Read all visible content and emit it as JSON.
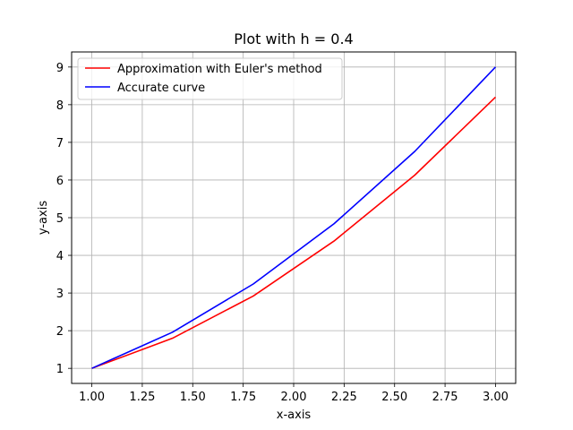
{
  "chart_data": {
    "type": "line",
    "title": "Plot with h = 0.4",
    "xlabel": "x-axis",
    "ylabel": "y-axis",
    "xlim": [
      0.9,
      3.1
    ],
    "ylim": [
      0.6,
      9.4
    ],
    "xticks": [
      1.0,
      1.25,
      1.5,
      1.75,
      2.0,
      2.25,
      2.5,
      2.75,
      3.0
    ],
    "xtick_labels": [
      "1.00",
      "1.25",
      "1.50",
      "1.75",
      "2.00",
      "2.25",
      "2.50",
      "2.75",
      "3.00"
    ],
    "yticks": [
      1,
      2,
      3,
      4,
      5,
      6,
      7,
      8,
      9
    ],
    "ytick_labels": [
      "1",
      "2",
      "3",
      "4",
      "5",
      "6",
      "7",
      "8",
      "9"
    ],
    "grid": true,
    "legend_position": "top-left",
    "series": [
      {
        "name": "Approximation with Euler's method",
        "color": "#ff0000",
        "x": [
          1.0,
          1.4,
          1.8,
          2.2,
          2.6,
          3.0
        ],
        "y": [
          1.0,
          1.8,
          2.92,
          4.38,
          6.13,
          8.2
        ]
      },
      {
        "name": "Accurate curve",
        "color": "#0000ff",
        "x": [
          1.0,
          1.4,
          1.8,
          2.2,
          2.6,
          3.0
        ],
        "y": [
          1.0,
          1.96,
          3.24,
          4.84,
          6.76,
          9.0
        ]
      }
    ]
  }
}
